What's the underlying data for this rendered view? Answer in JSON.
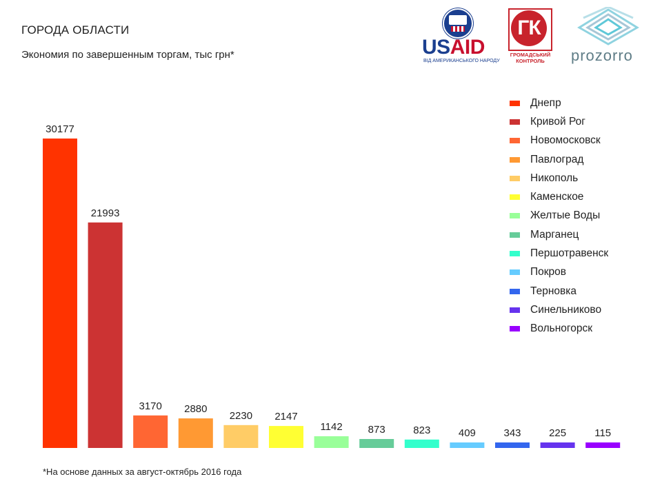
{
  "header": {
    "title": "ГОРОДА ОБЛАСТИ",
    "subtitle": "Экономия по завершенным торгам, тыс грн*"
  },
  "footnote": "*На основе данных за август-октябрь 2016 года",
  "logos": {
    "usaid": {
      "word_us": "US",
      "word_aid": "AID",
      "subtitle": "ВІД АМЕРИКАНСЬКОГО НАРОДУ",
      "seal_text": "USAID"
    },
    "gk": {
      "letters": "ГК",
      "line1": "ГРОМАДСЬКИЙ",
      "line2": "КОНТРОЛЬ"
    },
    "prozorro": {
      "word": "prozorro",
      "icon": "prozorro-diamond-icon"
    }
  },
  "chart_data": {
    "type": "bar",
    "title": "ГОРОДА ОБЛАСТИ",
    "subtitle": "Экономия по завершенным торгам, тыс грн*",
    "categories": [
      "Днепр",
      "Кривой Рог",
      "Новомосковск",
      "Павлоград",
      "Никополь",
      "Каменское",
      "Желтые Воды",
      "Марганец",
      "Першотравенск",
      "Покров",
      "Терновка",
      "Синельниково",
      "Вольногорск"
    ],
    "values": [
      30177,
      21993,
      3170,
      2880,
      2230,
      2147,
      1142,
      873,
      823,
      409,
      343,
      225,
      115
    ],
    "colors": [
      "#ff3300",
      "#cc3333",
      "#ff6633",
      "#ff9933",
      "#ffcc66",
      "#ffff33",
      "#99ff99",
      "#66cc99",
      "#33ffcc",
      "#66ccff",
      "#3366ee",
      "#6633ee",
      "#9900ff"
    ],
    "ylim": [
      0,
      30177
    ],
    "xlabel": "",
    "ylabel": "",
    "grid": false,
    "legend": "right",
    "data_labels": true
  }
}
